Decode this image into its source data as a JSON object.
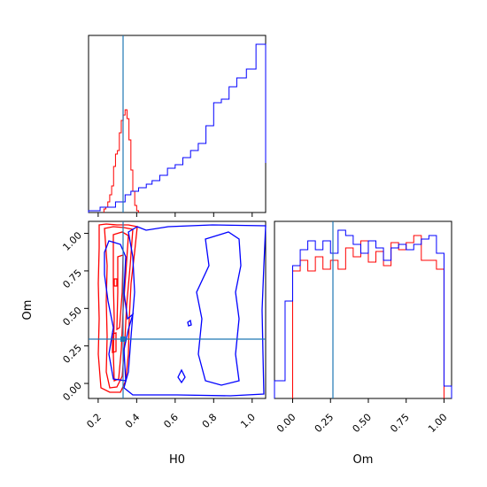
{
  "chart_data": [
    {
      "panel": "H0 marginal",
      "type": "histogram-step",
      "xlim": [
        0.15,
        1.07
      ],
      "truth_x": 0.34,
      "series": [
        {
          "color": "#ff0000",
          "bins_x": [
            0.23,
            0.24,
            0.25,
            0.26,
            0.27,
            0.28,
            0.29,
            0.3,
            0.31,
            0.32,
            0.33,
            0.34,
            0.35,
            0.36,
            0.37,
            0.38,
            0.39,
            0.4,
            0.41
          ],
          "heights": [
            0.02,
            0.03,
            0.06,
            0.1,
            0.15,
            0.26,
            0.33,
            0.35,
            0.45,
            0.52,
            0.55,
            0.58,
            0.53,
            0.41,
            0.24,
            0.12,
            0.04,
            0.01
          ]
        },
        {
          "color": "#0000ff",
          "bins_x": [
            0.15,
            0.21,
            0.29,
            0.34,
            0.37,
            0.41,
            0.45,
            0.48,
            0.52,
            0.56,
            0.6,
            0.64,
            0.68,
            0.72,
            0.76,
            0.8,
            0.84,
            0.88,
            0.92,
            0.97,
            1.02,
            1.07
          ],
          "heights": [
            0.01,
            0.03,
            0.06,
            0.1,
            0.12,
            0.14,
            0.16,
            0.18,
            0.21,
            0.25,
            0.27,
            0.31,
            0.35,
            0.39,
            0.49,
            0.62,
            0.64,
            0.71,
            0.76,
            0.81,
            0.95,
            0.28
          ]
        }
      ]
    },
    {
      "panel": "Om vs H0 contours",
      "type": "contour",
      "xlim": [
        0.15,
        1.07
      ],
      "ylim": [
        -0.1,
        1.08
      ],
      "xticks": [
        "0.2",
        "0.4",
        "0.6",
        "0.8",
        "1.0"
      ],
      "yticks": [
        "0.00",
        "0.25",
        "0.50",
        "0.75",
        "1.00"
      ],
      "xticks_values": [
        0.2,
        0.4,
        0.6,
        0.8,
        1.0
      ],
      "yticks_values": [
        0.0,
        0.25,
        0.5,
        0.75,
        1.0
      ],
      "xlabel": "H0",
      "ylabel": "Om",
      "truth": [
        0.34,
        0.28
      ],
      "series_colors": [
        "#ff0000",
        "#0000ff"
      ]
    },
    {
      "panel": "Om marginal",
      "type": "histogram-step",
      "xlim": [
        -0.12,
        1.05
      ],
      "xticks": [
        "0.00",
        "0.25",
        "0.50",
        "0.75",
        "1.00"
      ],
      "xticks_values": [
        0.0,
        0.25,
        0.5,
        0.75,
        1.0
      ],
      "xlabel": "Om",
      "truth_x": 0.28,
      "series": [
        {
          "color": "#ff0000",
          "bins_x": [
            0.0,
            0.05,
            0.1,
            0.15,
            0.2,
            0.25,
            0.3,
            0.35,
            0.4,
            0.45,
            0.5,
            0.55,
            0.6,
            0.65,
            0.7,
            0.75,
            0.8,
            0.85,
            0.9,
            0.95,
            1.0
          ],
          "heights": [
            0.72,
            0.78,
            0.72,
            0.8,
            0.73,
            0.78,
            0.73,
            0.85,
            0.8,
            0.89,
            0.77,
            0.83,
            0.75,
            0.88,
            0.84,
            0.88,
            0.92,
            0.78,
            0.78,
            0.73
          ]
        },
        {
          "color": "#0000ff",
          "bins_x": [
            -0.12,
            -0.05,
            0.0,
            0.05,
            0.1,
            0.15,
            0.2,
            0.25,
            0.3,
            0.35,
            0.4,
            0.45,
            0.5,
            0.55,
            0.6,
            0.65,
            0.7,
            0.75,
            0.8,
            0.85,
            0.9,
            0.95,
            1.0,
            1.05
          ],
          "heights": [
            0.1,
            0.55,
            0.75,
            0.84,
            0.89,
            0.84,
            0.89,
            0.82,
            0.95,
            0.92,
            0.87,
            0.82,
            0.89,
            0.85,
            0.78,
            0.85,
            0.87,
            0.84,
            0.87,
            0.9,
            0.92,
            0.82,
            0.07
          ]
        }
      ]
    }
  ]
}
